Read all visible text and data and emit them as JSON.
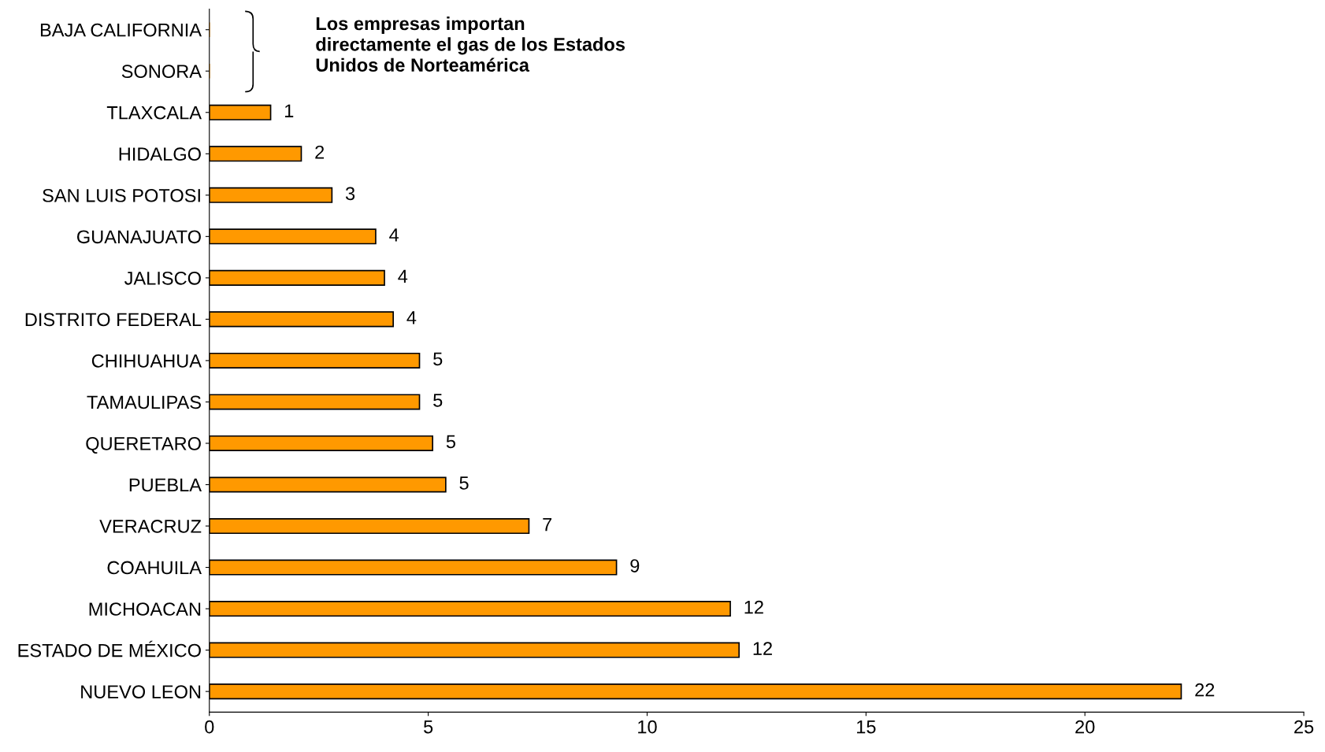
{
  "chart_data": {
    "type": "bar",
    "orientation": "horizontal",
    "categories": [
      "BAJA CALIFORNIA",
      "SONORA",
      "TLAXCALA",
      "HIDALGO",
      "SAN LUIS POTOSI",
      "GUANAJUATO",
      "JALISCO",
      "DISTRITO FEDERAL",
      "CHIHUAHUA",
      "TAMAULIPAS",
      "QUERETARO",
      "PUEBLA",
      "VERACRUZ",
      "COAHUILA",
      "MICHOACAN",
      "ESTADO DE MÉXICO",
      "NUEVO LEON"
    ],
    "values": [
      0,
      0,
      1.4,
      2.1,
      2.8,
      3.8,
      4.0,
      4.2,
      4.8,
      4.8,
      5.1,
      5.4,
      7.3,
      9.3,
      11.9,
      12.1,
      22.2
    ],
    "value_labels": [
      null,
      null,
      "1",
      "2",
      "3",
      "4",
      "4",
      "4",
      "5",
      "5",
      "5",
      "5",
      "7",
      "9",
      "12",
      "12",
      "22"
    ],
    "color": "#ff9900",
    "xlim": [
      0,
      25
    ],
    "xticks": [
      0,
      5,
      10,
      15,
      20,
      25
    ],
    "grid": false,
    "legend": false,
    "annotations": [
      "Los empresas importan\ndirectamente el gas de los Estados\nUnidos de Norteamérica"
    ]
  }
}
